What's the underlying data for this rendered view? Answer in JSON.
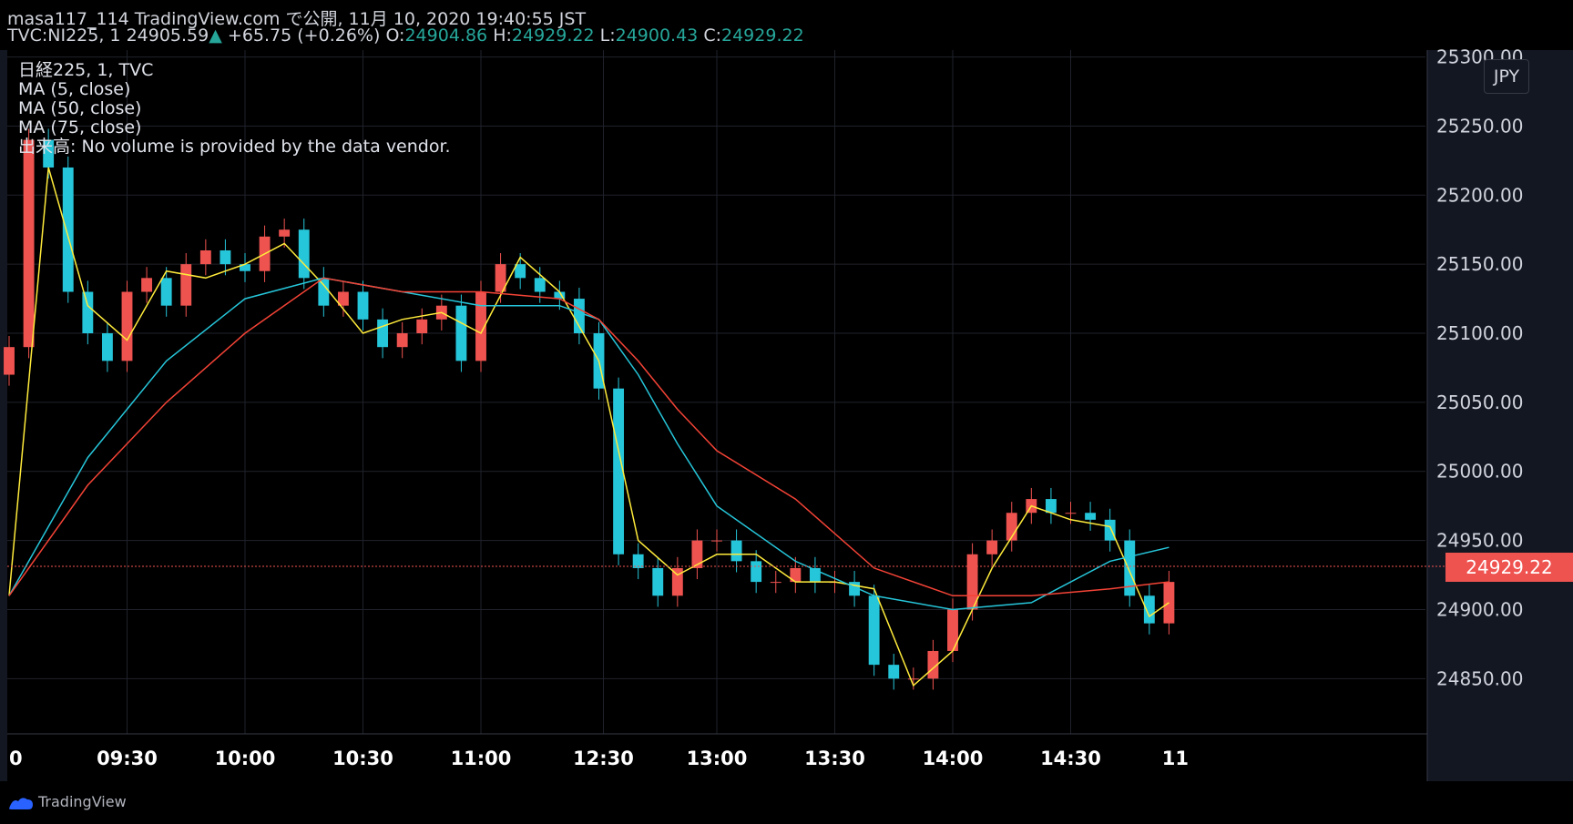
{
  "header": {
    "publisher": "masa117_114 TradingView.com で公開, 11月 10, 2020 19:40:55 JST",
    "symbol": "TVC:NI225, 1",
    "last": "24905.59",
    "change": "+65.75 (+0.26%)",
    "o_label": "O:",
    "o_value": "24904.86",
    "h_label": "H:",
    "h_value": "24929.22",
    "l_label": "L:",
    "l_value": "24900.43",
    "c_label": "C:",
    "c_value": "24929.22"
  },
  "legend": {
    "series": "日経225, 1, TVC",
    "ma5": "MA (5, close)",
    "ma50": "MA (50, close)",
    "ma75": "MA (75, close)",
    "volume": "出来高: No volume is provided by the data vendor."
  },
  "currency_button": "JPY",
  "current_price": "24929.22",
  "footer": {
    "brand": "TradingView"
  },
  "colors": {
    "up": "#ef5350",
    "down": "#26c6da",
    "ma5": "#ffeb3b",
    "ma50": "#26c6da",
    "ma75": "#f44336",
    "background": "#000000",
    "grid": "#1f222b"
  },
  "chart_data": {
    "type": "line",
    "title": "日経225, 1, TVC",
    "y_ticks": [
      "25300.00",
      "25250.00",
      "25200.00",
      "25150.00",
      "25100.00",
      "25050.00",
      "25000.00",
      "24950.00",
      "24900.00",
      "24850.00"
    ],
    "x_ticks": [
      "0",
      "09:30",
      "10:00",
      "10:30",
      "11:00",
      "12:30",
      "13:00",
      "13:30",
      "14:00",
      "14:30",
      "11"
    ],
    "ylim": [
      24810,
      25305
    ],
    "grid": true,
    "series": [
      {
        "name": "日経225",
        "style": "candles",
        "x": [
          "09:00",
          "09:05",
          "09:10",
          "09:15",
          "09:20",
          "09:25",
          "09:30",
          "09:35",
          "09:40",
          "09:45",
          "09:50",
          "09:55",
          "10:00",
          "10:05",
          "10:10",
          "10:15",
          "10:20",
          "10:25",
          "10:30",
          "10:35",
          "10:40",
          "10:45",
          "10:50",
          "10:55",
          "11:00",
          "11:05",
          "11:10",
          "11:15",
          "11:20",
          "11:25",
          "12:30",
          "12:35",
          "12:40",
          "12:45",
          "12:50",
          "12:55",
          "13:00",
          "13:05",
          "13:10",
          "13:15",
          "13:20",
          "13:25",
          "13:30",
          "13:35",
          "13:40",
          "13:45",
          "13:50",
          "13:55",
          "14:00",
          "14:05",
          "14:10",
          "14:15",
          "14:20",
          "14:25",
          "14:30",
          "14:35",
          "14:40",
          "14:45",
          "14:50",
          "14:55"
        ],
        "values": [
          25090,
          25240,
          25220,
          25130,
          25100,
          25080,
          25130,
          25140,
          25120,
          25150,
          25160,
          25150,
          25145,
          25170,
          25175,
          25140,
          25120,
          25130,
          25110,
          25090,
          25100,
          25110,
          25120,
          25080,
          25130,
          25150,
          25140,
          25130,
          25125,
          25100,
          25060,
          24940,
          24930,
          24910,
          24930,
          24950,
          24950,
          24935,
          24920,
          24920,
          24930,
          24920,
          24920,
          24910,
          24860,
          24850,
          24850,
          24870,
          24900,
          24940,
          24950,
          24970,
          24980,
          24970,
          24970,
          24965,
          24950,
          24910,
          24890,
          24920
        ]
      },
      {
        "name": "MA (5, close)",
        "style": "line",
        "x": [
          "09:00",
          "09:10",
          "09:20",
          "09:30",
          "09:40",
          "09:50",
          "10:00",
          "10:10",
          "10:20",
          "10:30",
          "10:40",
          "10:50",
          "11:00",
          "11:10",
          "11:20",
          "12:30",
          "12:40",
          "12:50",
          "13:00",
          "13:10",
          "13:20",
          "13:30",
          "13:40",
          "13:50",
          "14:00",
          "14:10",
          "14:20",
          "14:30",
          "14:40",
          "14:50",
          "14:55"
        ],
        "values": [
          24910,
          25220,
          25120,
          25095,
          25145,
          25140,
          25150,
          25165,
          25135,
          25100,
          25110,
          25115,
          25100,
          25155,
          25130,
          25080,
          24950,
          24925,
          24940,
          24940,
          24920,
          24920,
          24915,
          24845,
          24870,
          24930,
          24975,
          24965,
          24960,
          24895,
          24905
        ]
      },
      {
        "name": "MA (50, close)",
        "style": "line",
        "x": [
          "09:00",
          "09:20",
          "09:40",
          "10:00",
          "10:20",
          "10:40",
          "11:00",
          "11:20",
          "12:30",
          "12:40",
          "12:50",
          "13:00",
          "13:20",
          "13:40",
          "14:00",
          "14:20",
          "14:40",
          "14:55"
        ],
        "values": [
          24910,
          25010,
          25080,
          25125,
          25140,
          25130,
          25120,
          25120,
          25110,
          25070,
          25020,
          24975,
          24935,
          24910,
          24900,
          24905,
          24935,
          24945
        ]
      },
      {
        "name": "MA (75, close)",
        "style": "line",
        "x": [
          "09:00",
          "09:20",
          "09:40",
          "10:00",
          "10:20",
          "10:40",
          "11:00",
          "11:20",
          "12:30",
          "12:40",
          "12:50",
          "13:00",
          "13:20",
          "13:40",
          "14:00",
          "14:20",
          "14:40",
          "14:55"
        ],
        "values": [
          24910,
          24990,
          25050,
          25100,
          25140,
          25130,
          25130,
          25125,
          25110,
          25080,
          25045,
          25015,
          24980,
          24930,
          24910,
          24910,
          24915,
          24920
        ]
      }
    ]
  }
}
